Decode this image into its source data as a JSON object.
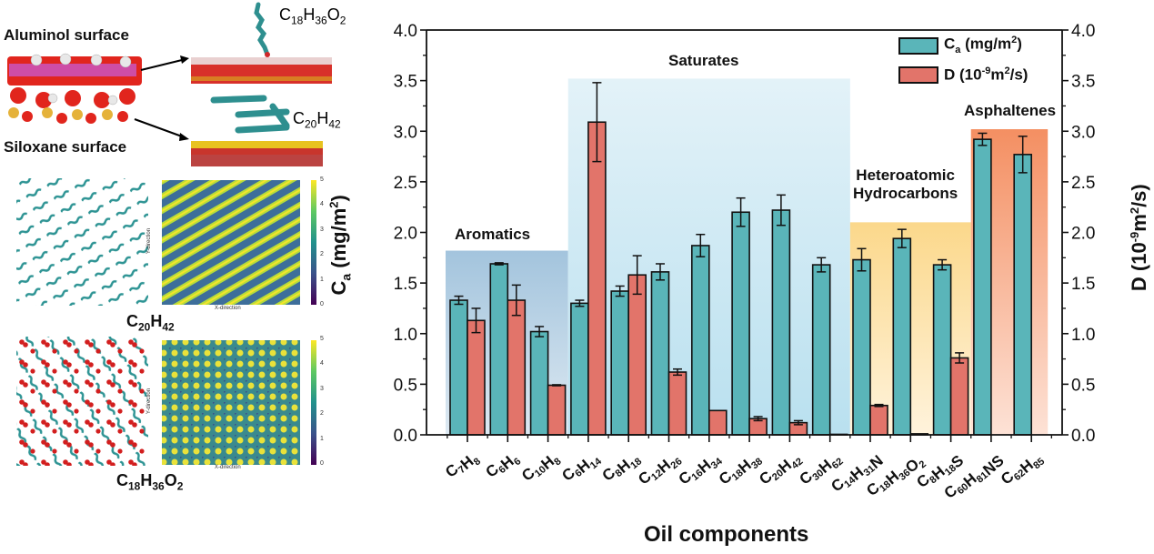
{
  "left_panel": {
    "aluminol_label": "Aluminol surface",
    "siloxane_label": "Siloxane surface",
    "mol_top": {
      "C": "C",
      "c_sub": "18",
      "H": "H",
      "h_sub": "36",
      "O": "O",
      "o_sub": "2"
    },
    "mol_bottom": {
      "C": "C",
      "c_sub": "20",
      "H": "H",
      "h_sub": "42"
    },
    "map1_caption": {
      "C": "C",
      "c_sub": "20",
      "H": "H",
      "h_sub": "42"
    },
    "map2_caption": {
      "C": "C",
      "c_sub": "18",
      "H": "H",
      "h_sub": "36",
      "O": "O",
      "o_sub": "2"
    },
    "x_direction": "X-direction",
    "y_direction": "Y-direction",
    "colorbar_ticks": [
      "0",
      "1",
      "2",
      "3",
      "4",
      "5"
    ]
  },
  "colors": {
    "ca": "#5ab5b9",
    "d": "#e2746a",
    "aromatics": "#a9c9e0",
    "saturates": "#cde8f3",
    "heteroatomic": "#fbd98d",
    "asphaltenes": "#f4956a"
  },
  "chart_data": {
    "type": "bar",
    "xlabel": "Oil components",
    "ylabel_left": {
      "main": "C",
      "sub": "a",
      "unit": " (mg/m",
      "sup": "2",
      "close": ")"
    },
    "ylabel_right": {
      "main": "D (10",
      "sup1": "-9",
      "mid": "m",
      "sup2": "2",
      "close": "/s)"
    },
    "ylim": [
      0,
      4.0
    ],
    "yticks": [
      "0.0",
      "0.5",
      "1.0",
      "1.5",
      "2.0",
      "2.5",
      "3.0",
      "3.5",
      "4.0"
    ],
    "categories": [
      [
        [
          "C",
          "7"
        ],
        [
          "H",
          "8"
        ]
      ],
      [
        [
          "C",
          "6"
        ],
        [
          "H",
          "6"
        ]
      ],
      [
        [
          "C",
          "10"
        ],
        [
          "H",
          "8"
        ]
      ],
      [
        [
          "C",
          "6"
        ],
        [
          "H",
          "14"
        ]
      ],
      [
        [
          "C",
          "8"
        ],
        [
          "H",
          "18"
        ]
      ],
      [
        [
          "C",
          "12"
        ],
        [
          "H",
          "26"
        ]
      ],
      [
        [
          "C",
          "16"
        ],
        [
          "H",
          "34"
        ]
      ],
      [
        [
          "C",
          "18"
        ],
        [
          "H",
          "38"
        ]
      ],
      [
        [
          "C",
          "20"
        ],
        [
          "H",
          "42"
        ]
      ],
      [
        [
          "C",
          "30"
        ],
        [
          "H",
          "62"
        ]
      ],
      [
        [
          "C",
          "14"
        ],
        [
          "H",
          "31"
        ],
        [
          "N",
          ""
        ]
      ],
      [
        [
          "C",
          "18"
        ],
        [
          "H",
          "36"
        ],
        [
          "O",
          "2"
        ]
      ],
      [
        [
          "C",
          "8"
        ],
        [
          "H",
          "18"
        ],
        [
          "S",
          ""
        ]
      ],
      [
        [
          "C",
          "60"
        ],
        [
          "H",
          "81"
        ],
        [
          "NS",
          ""
        ]
      ],
      [
        [
          "C",
          "62"
        ],
        [
          "H",
          "85"
        ]
      ]
    ],
    "series": [
      {
        "name": "Ca",
        "legend": {
          "main": "C",
          "sub": "a",
          "rest": " (mg/m",
          "sup": "2",
          "close": ")"
        },
        "values": [
          1.33,
          1.69,
          1.02,
          1.3,
          1.42,
          1.61,
          1.87,
          2.2,
          2.22,
          1.68,
          1.73,
          1.94,
          1.68,
          2.92,
          2.77
        ],
        "errors": [
          0.04,
          0.01,
          0.05,
          0.03,
          0.05,
          0.08,
          0.11,
          0.14,
          0.15,
          0.07,
          0.11,
          0.09,
          0.05,
          0.06,
          0.18
        ]
      },
      {
        "name": "D",
        "legend": {
          "main": "D (10",
          "sup1": "-9",
          "mid": "m",
          "sup2": "2",
          "close": "/s)"
        },
        "values": [
          1.13,
          1.33,
          0.49,
          3.09,
          1.58,
          0.62,
          0.24,
          0.16,
          0.12,
          0.005,
          0.29,
          0.01,
          0.76,
          null,
          null
        ],
        "errors": [
          0.12,
          0.15,
          0.005,
          0.39,
          0.19,
          0.03,
          0.0,
          0.02,
          0.02,
          0.0,
          0.01,
          0.0,
          0.05,
          null,
          null
        ]
      }
    ],
    "groups": [
      {
        "name": "Aromatics",
        "from": 0,
        "to": 2,
        "top": 1.82
      },
      {
        "name": "Saturates",
        "from": 3,
        "to": 9,
        "top": 3.52
      },
      {
        "name": "Heteroatomic Hydrocarbons",
        "line1": "Heteroatomic",
        "line2": "Hydrocarbons",
        "from": 10,
        "to": 12,
        "top": 2.1
      },
      {
        "name": "Asphaltenes",
        "from": 13,
        "to": 14,
        "top": 3.02
      }
    ],
    "legend_position": "top-right"
  }
}
